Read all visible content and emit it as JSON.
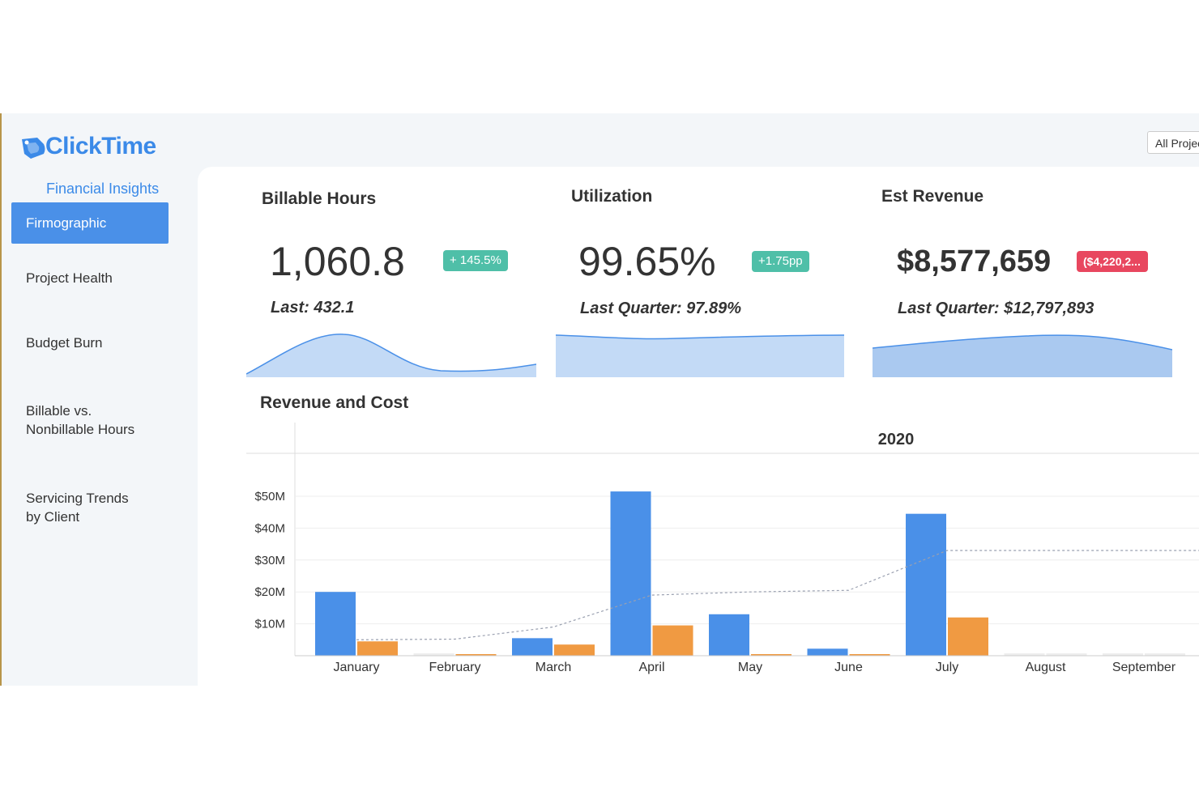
{
  "brand": {
    "name": "ClickTime",
    "subtitle": "Financial Insights",
    "logo_icon": "clicktime-logo-icon",
    "color": "#3b8ae8"
  },
  "nav": {
    "items": [
      {
        "label": "Firmographic",
        "active": true
      },
      {
        "label": "Project Health",
        "active": false
      },
      {
        "label": "Budget Burn",
        "active": false
      },
      {
        "label": "Billable vs.\nNonbillable Hours",
        "active": false
      },
      {
        "label": "Servicing Trends\nby Client",
        "active": false
      }
    ],
    "active_color": "#4a90e8"
  },
  "filter": {
    "label": "All Projec"
  },
  "kpis": [
    {
      "title": "Billable Hours",
      "value": "1,060.8",
      "badge": "+ 145.5%",
      "badge_color": "#4fbfa8",
      "last": "Last: 432.1"
    },
    {
      "title": "Utilization",
      "value": "99.65%",
      "badge": "+1.75pp",
      "badge_color": "#4fbfa8",
      "last": "Last Quarter: 97.89%"
    },
    {
      "title": "Est Revenue",
      "value": "$8,577,659",
      "badge": "($4,220,2...",
      "badge_color": "#e8475f",
      "last": "Last Quarter: $12,797,893"
    }
  ],
  "revenue_cost": {
    "title": "Revenue and Cost"
  },
  "chart_data": {
    "type": "bar",
    "title": "2020",
    "categories": [
      "January",
      "February",
      "March",
      "April",
      "May",
      "June",
      "July",
      "August",
      "September"
    ],
    "series": [
      {
        "values": [
          20,
          0,
          5.5,
          51.5,
          13,
          2.2,
          44.5,
          0,
          0
        ],
        "color": "#4a90e8"
      },
      {
        "values": [
          4.5,
          0.3,
          3.5,
          9.5,
          0.3,
          0.2,
          12,
          0,
          0
        ],
        "color": "#f09a42"
      },
      {
        "values": [
          5,
          5.2,
          9,
          19,
          20,
          20.5,
          33,
          33,
          33
        ],
        "color": "#9aa0b0",
        "style": "dashed-line"
      }
    ],
    "ylabel": "",
    "ylim": [
      0,
      60
    ],
    "yticks": [
      10,
      20,
      30,
      40,
      50
    ],
    "ytick_labels": [
      "$10M",
      "$20M",
      "$30M",
      "$40M",
      "$50M"
    ],
    "grid": true,
    "legend": "none"
  }
}
